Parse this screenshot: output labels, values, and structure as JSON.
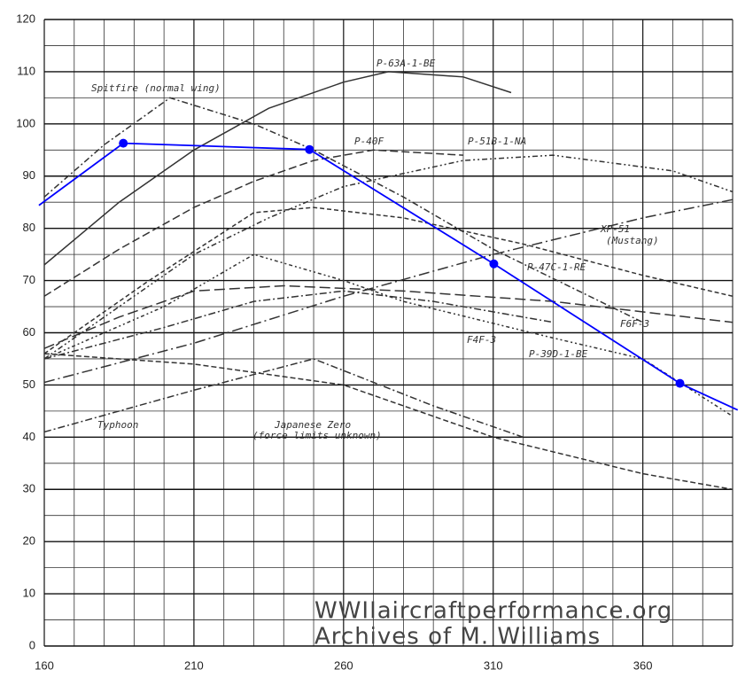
{
  "chart_data": {
    "type": "line",
    "xlim": [
      160,
      390
    ],
    "ylim": [
      0,
      120
    ],
    "xticks": [
      160,
      210,
      260,
      310,
      360
    ],
    "yticks": [
      0,
      10,
      20,
      30,
      40,
      50,
      60,
      70,
      80,
      90,
      100,
      110,
      120
    ],
    "minor_xticks": [
      170,
      180,
      190,
      200,
      220,
      230,
      240,
      250,
      270,
      280,
      290,
      300,
      320,
      330,
      340,
      350,
      370,
      380
    ],
    "minor_yticks": [
      5,
      15,
      25,
      35,
      45,
      55,
      65,
      75,
      85,
      95,
      105,
      115
    ],
    "grid": true,
    "series": [
      {
        "color": "#0000ff",
        "x": [
          158.2,
          186.4,
          248.6,
          310.2,
          372.4,
          391.7
        ],
        "values": [
          84.4,
          96.3,
          95.1,
          73.2,
          50.3,
          45.2
        ]
      }
    ],
    "markers": {
      "color": "#0000ff",
      "x": [
        186.4,
        248.6,
        310.2,
        372.4
      ],
      "values": [
        96.3,
        95.1,
        73.2,
        50.3
      ]
    },
    "curves": [
      {
        "label": [
          "P-63A-1-BE"
        ],
        "x": [
          160,
          185,
          210,
          235,
          260,
          275,
          300,
          316
        ],
        "values": [
          73,
          85,
          95,
          103,
          108,
          110,
          109,
          106
        ]
      },
      {
        "label": [
          "Spitfire (normal wing)"
        ],
        "x": [
          160,
          180,
          202,
          230,
          250,
          280,
          310,
          360
        ],
        "values": [
          86,
          96,
          105,
          100,
          95,
          86,
          76,
          62
        ]
      },
      {
        "label": [
          "P-40F"
        ],
        "x": [
          160,
          185,
          210,
          230,
          250,
          270,
          300
        ],
        "values": [
          67,
          76,
          84,
          89,
          93,
          95,
          94
        ]
      },
      {
        "label": [
          "P-51B-1-NA"
        ],
        "x": [
          160,
          185,
          210,
          235,
          260,
          300,
          330,
          370,
          390
        ],
        "values": [
          55,
          65,
          75,
          82,
          88,
          93,
          94,
          91,
          87
        ]
      },
      {
        "label": [
          "XP-51",
          "(Mustang)"
        ],
        "x": [
          160,
          195,
          230,
          250,
          280,
          320,
          360,
          390
        ],
        "values": [
          56,
          70,
          83,
          84,
          82,
          77,
          71,
          67
        ]
      },
      {
        "label": [
          "P-47C-1-RE"
        ],
        "x": [
          160,
          210,
          260,
          310,
          360,
          390
        ],
        "values": [
          50.5,
          58,
          67,
          75,
          82,
          85.5
        ]
      },
      {
        "label": [
          "F6F-3"
        ],
        "x": [
          160,
          185,
          210,
          240,
          280,
          330,
          390
        ],
        "values": [
          57,
          63,
          68,
          69,
          68,
          66,
          62
        ]
      },
      {
        "label": [
          "F4F-3"
        ],
        "x": [
          160,
          200,
          230,
          260,
          290,
          330
        ],
        "values": [
          55,
          61,
          66,
          68,
          66,
          62
        ]
      },
      {
        "label": [
          "P-39D-1-BE"
        ],
        "x": [
          160,
          200,
          230,
          260,
          280,
          330,
          360,
          390
        ],
        "values": [
          55,
          65,
          75,
          70,
          66,
          59,
          55,
          44
        ]
      },
      {
        "label": [
          "Typhoon"
        ],
        "x": [
          160,
          210,
          250,
          290,
          320
        ],
        "values": [
          41,
          49,
          55,
          46,
          40
        ]
      },
      {
        "label": [
          "Japanese Zero",
          "(force limits unknown)"
        ],
        "x": [
          160,
          210,
          260,
          310,
          360,
          390
        ],
        "values": [
          56,
          54,
          50,
          40,
          33,
          30
        ]
      }
    ],
    "watermark": [
      "WWIIaircraftperformance.org",
      "Archives of M. Williams"
    ]
  }
}
